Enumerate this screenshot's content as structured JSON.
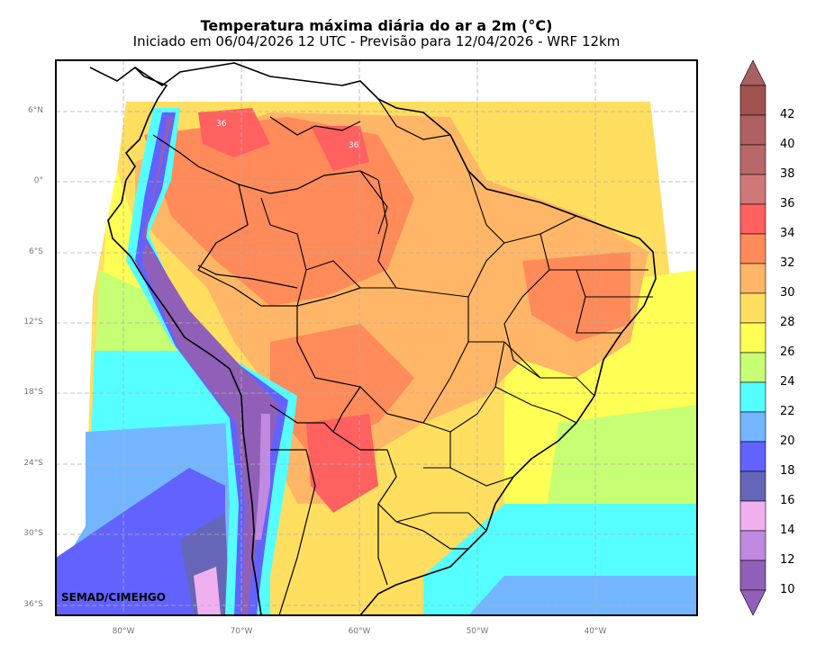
{
  "title": "Temperatura máxima diária do ar a 2m (°C)",
  "subtitle": "Iniciado em 06/04/2026 12 UTC - Previsão para 12/04/2026 - WRF 12km",
  "credit": "SEMAD/CIMEHGO",
  "lat_labels": [
    "6°N",
    "0°",
    "6°S",
    "12°S",
    "18°S",
    "24°S",
    "30°S",
    "36°S"
  ],
  "lon_labels": [
    "80°W",
    "70°W",
    "60°W",
    "50°W",
    "40°W"
  ],
  "map_labels": [
    "36",
    "36"
  ],
  "colorbar": {
    "labels": [
      "42",
      "40",
      "38",
      "36",
      "34",
      "32",
      "30",
      "28",
      "26",
      "24",
      "22",
      "20",
      "18",
      "16",
      "14",
      "12",
      "10"
    ],
    "colors": [
      "#a0524f",
      "#b06060",
      "#b86868",
      "#d07878",
      "#ff6060",
      "#ff8a5a",
      "#ffb666",
      "#ffde60",
      "#ffff55",
      "#c6ff73",
      "#55ffff",
      "#73b6ff",
      "#6262ff",
      "#6666b8",
      "#f0b0f0",
      "#c08ae0",
      "#9060b8"
    ]
  }
}
